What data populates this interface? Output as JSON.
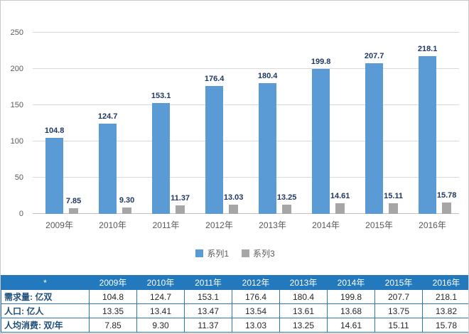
{
  "chart_data": {
    "type": "bar",
    "title": "",
    "categories": [
      "2009年",
      "2010年",
      "2011年",
      "2012年",
      "2013年",
      "2014年",
      "2015年",
      "2016年"
    ],
    "series": [
      {
        "name": "系列1",
        "color": "#5b9bd5",
        "values": [
          104.8,
          124.7,
          153.1,
          176.4,
          180.4,
          199.8,
          207.7,
          218.1
        ]
      },
      {
        "name": "系列3",
        "color": "#a6a6a6",
        "values": [
          7.85,
          9.3,
          11.37,
          13.03,
          13.25,
          14.61,
          15.11,
          15.78
        ]
      }
    ],
    "value_labels": [
      [
        "104.8",
        "124.7",
        "153.1",
        "176.4",
        "180.4",
        "199.8",
        "207.7",
        "218.1"
      ],
      [
        "7.85",
        "9.30",
        "11.37",
        "13.03",
        "13.25",
        "14.61",
        "15.11",
        "15.78"
      ]
    ],
    "xlabel": "",
    "ylabel": "",
    "ylim": [
      0,
      250
    ],
    "yticks": [
      0,
      50,
      100,
      150,
      200,
      250
    ],
    "grid": true,
    "legend_position": "bottom"
  },
  "table": {
    "corner_label": "*",
    "columns": [
      "2009年",
      "2010年",
      "2011年",
      "2012年",
      "2013年",
      "2014年",
      "2015年",
      "2016年"
    ],
    "rows": [
      {
        "label": "需求量: 亿双",
        "values": [
          "104.8",
          "124.7",
          "153.1",
          "176.4",
          "180.4",
          "199.8",
          "207.7",
          "218.1"
        ]
      },
      {
        "label": "人口: 亿人",
        "values": [
          "13.35",
          "13.41",
          "13.47",
          "13.54",
          "13.61",
          "13.68",
          "13.75",
          "13.82"
        ]
      },
      {
        "label": "人均消费: 双/年",
        "values": [
          "7.85",
          "9.30",
          "11.37",
          "13.03",
          "13.25",
          "14.61",
          "15.11",
          "15.78"
        ]
      }
    ]
  },
  "colors": {
    "series1": "#5b9bd5",
    "series3": "#a6a6a6",
    "table_header_bg": "#2279bd",
    "table_border": "#2e75b6",
    "axis_text": "#595959",
    "value_label_text": "#1f3864",
    "gridline": "#d9d9d9"
  }
}
